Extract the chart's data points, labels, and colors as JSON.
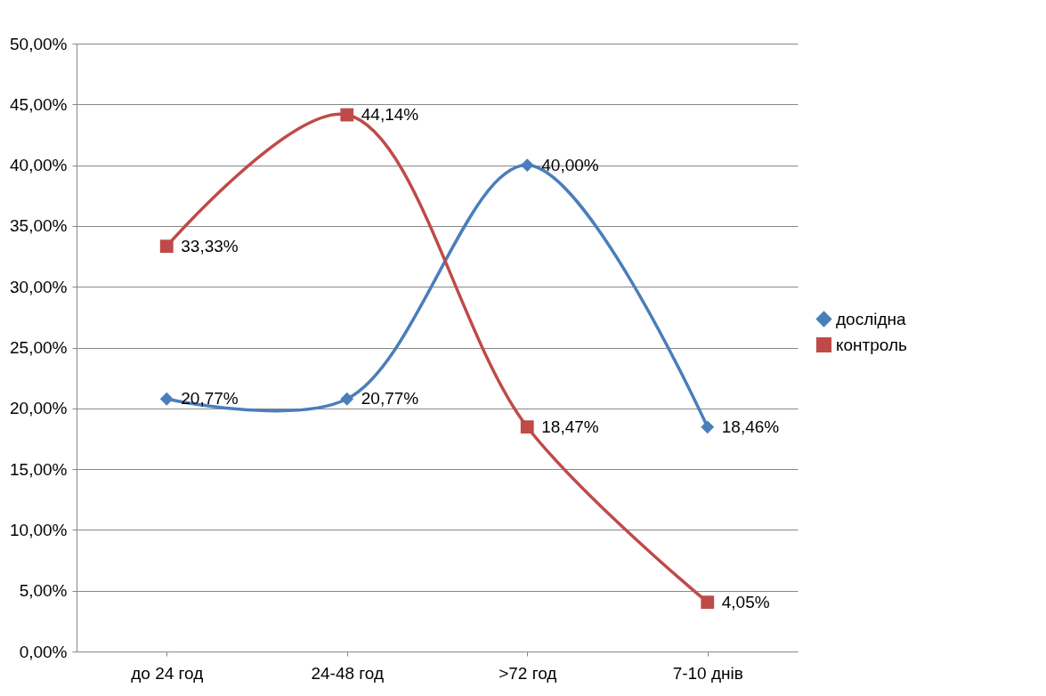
{
  "chart_data": {
    "type": "line",
    "categories": [
      "до 24 год",
      "24-48 год",
      ">72 год",
      "7-10 днів"
    ],
    "series": [
      {
        "name": "дослідна",
        "color": "#4a7ebb",
        "marker": "diamond",
        "values": [
          20.77,
          20.77,
          40.0,
          18.46
        ],
        "value_labels": [
          "20,77%",
          "20,77%",
          "40,00%",
          "18,46%"
        ]
      },
      {
        "name": "контроль",
        "color": "#be4b48",
        "marker": "square",
        "values": [
          33.33,
          44.14,
          18.47,
          4.05
        ],
        "value_labels": [
          "33,33%",
          "44,14%",
          "18,47%",
          "4,05%"
        ]
      }
    ],
    "ylim": [
      0,
      50
    ],
    "yticks": [
      {
        "value": 0,
        "label": "0,00%"
      },
      {
        "value": 5,
        "label": "5,00%"
      },
      {
        "value": 10,
        "label": "10,00%"
      },
      {
        "value": 15,
        "label": "15,00%"
      },
      {
        "value": 20,
        "label": "20,00%"
      },
      {
        "value": 25,
        "label": "25,00%"
      },
      {
        "value": 30,
        "label": "30,00%"
      },
      {
        "value": 35,
        "label": "35,00%"
      },
      {
        "value": 40,
        "label": "40,00%"
      },
      {
        "value": 45,
        "label": "45,00%"
      },
      {
        "value": 50,
        "label": "50,00%"
      }
    ],
    "grid": "y",
    "legend": "right",
    "line_style": "solid"
  }
}
